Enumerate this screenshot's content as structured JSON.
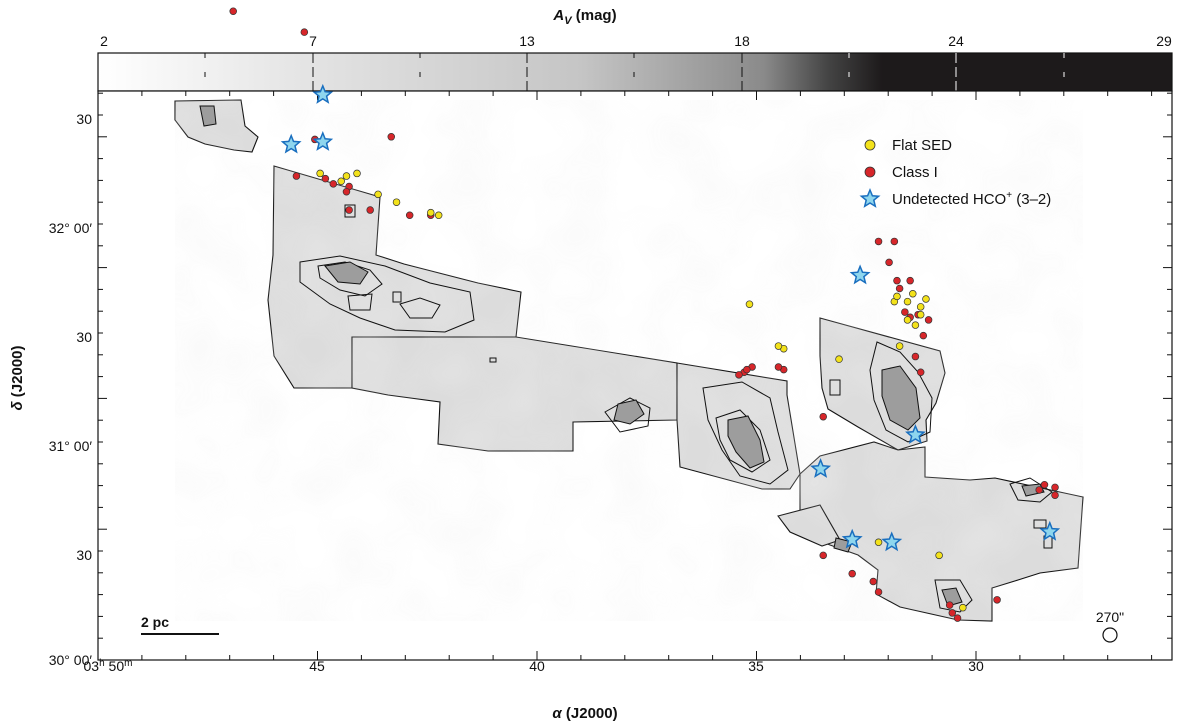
{
  "colorbar": {
    "title_main": "A",
    "title_sub": "V",
    "title_unit": " (mag)",
    "ticks": [
      "2",
      "7",
      "13",
      "18",
      "24",
      "29"
    ]
  },
  "axes": {
    "xlabel_main": "α",
    "xlabel_rest": " (J2000)",
    "ylabel_main": "δ",
    "ylabel_rest": " (J2000)",
    "x_ticks": [
      "45",
      "40",
      "35",
      "30"
    ],
    "x_origin": {
      "h": "03",
      "hs": "h",
      "m": " 50",
      "ms": "m"
    },
    "y_ticks": [
      "30",
      "32° 00′",
      "30",
      "31° 00′",
      "30",
      "30° 00′"
    ]
  },
  "legend": {
    "flat": "Flat SED",
    "class1": "Class I",
    "undetected_main": "Undetected HCO",
    "undetected_sup": "+",
    "undetected_rest": " (3–2)"
  },
  "colors": {
    "flat": "#f3e21b",
    "class1": "#d7262a",
    "star_fill": "#8ed6ee",
    "star_edge": "#1a6fbf"
  },
  "scalebar": "2 pc",
  "beam": "270\"",
  "chart_data": {
    "type": "scatter",
    "title": "",
    "xlabel": "α (J2000)",
    "ylabel": "δ (J2000)",
    "colorbar_label": "A_V (mag)",
    "colorbar_range": [
      2,
      29
    ],
    "series": [
      {
        "name": "Flat SED",
        "points": [
          [
            3.749,
            31.86
          ],
          [
            3.741,
            31.83
          ],
          [
            3.739,
            31.85
          ],
          [
            3.735,
            31.86
          ],
          [
            3.727,
            31.78
          ],
          [
            3.72,
            31.75
          ],
          [
            3.707,
            31.71
          ],
          [
            3.704,
            31.7
          ],
          [
            3.586,
            31.36
          ],
          [
            3.573,
            31.19
          ],
          [
            3.575,
            31.2
          ],
          [
            3.552,
            31.15
          ],
          [
            3.537,
            30.45
          ],
          [
            3.531,
            31.37
          ],
          [
            3.53,
            31.39
          ],
          [
            3.526,
            31.37
          ],
          [
            3.524,
            31.4
          ],
          [
            3.521,
            31.35
          ],
          [
            3.519,
            31.38
          ],
          [
            3.521,
            31.32
          ],
          [
            3.526,
            31.3
          ],
          [
            3.523,
            31.28
          ],
          [
            3.529,
            31.2
          ],
          [
            3.514,
            30.4
          ],
          [
            3.505,
            30.2
          ]
        ]
      },
      {
        "name": "Class I",
        "points": [
          [
            3.782,
            32.48
          ],
          [
            3.755,
            32.4
          ],
          [
            3.758,
            31.85
          ],
          [
            3.747,
            31.84
          ],
          [
            3.744,
            31.82
          ],
          [
            3.738,
            31.81
          ],
          [
            3.739,
            31.79
          ],
          [
            3.738,
            31.72
          ],
          [
            3.73,
            31.72
          ],
          [
            3.715,
            31.7
          ],
          [
            3.707,
            31.7
          ],
          [
            3.751,
            31.99
          ],
          [
            3.722,
            32.0
          ],
          [
            3.585,
            31.12
          ],
          [
            3.588,
            31.1
          ],
          [
            3.59,
            31.09
          ],
          [
            3.587,
            31.11
          ],
          [
            3.573,
            31.11
          ],
          [
            3.575,
            31.12
          ],
          [
            3.558,
            30.93
          ],
          [
            3.558,
            30.4
          ],
          [
            3.547,
            30.33
          ],
          [
            3.539,
            30.3
          ],
          [
            3.537,
            30.26
          ],
          [
            3.533,
            31.52
          ],
          [
            3.53,
            31.45
          ],
          [
            3.529,
            31.42
          ],
          [
            3.527,
            31.33
          ],
          [
            3.525,
            31.31
          ],
          [
            3.522,
            31.32
          ],
          [
            3.518,
            31.3
          ],
          [
            3.52,
            31.24
          ],
          [
            3.523,
            31.16
          ],
          [
            3.521,
            31.1
          ],
          [
            3.525,
            31.45
          ],
          [
            3.537,
            31.6
          ],
          [
            3.531,
            31.6
          ],
          [
            3.51,
            30.21
          ],
          [
            3.509,
            30.18
          ],
          [
            3.507,
            30.16
          ],
          [
            3.492,
            30.23
          ],
          [
            3.474,
            30.67
          ],
          [
            3.47,
            30.66
          ],
          [
            3.47,
            30.63
          ],
          [
            3.476,
            30.65
          ]
        ]
      },
      {
        "name": "Undetected HCO+ (3–2)",
        "points": [
          [
            3.748,
            32.16
          ],
          [
            3.76,
            31.97
          ],
          [
            3.748,
            31.98
          ],
          [
            3.544,
            31.47
          ],
          [
            3.559,
            30.73
          ],
          [
            3.547,
            30.46
          ],
          [
            3.532,
            30.45
          ],
          [
            3.523,
            30.86
          ],
          [
            3.472,
            30.49
          ]
        ]
      }
    ]
  }
}
